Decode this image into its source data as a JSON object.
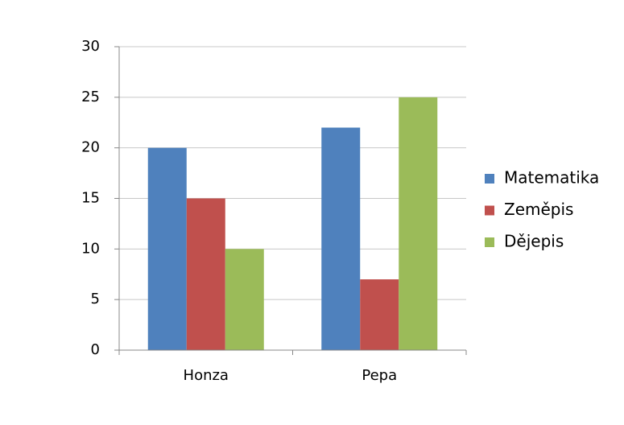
{
  "chart_data": {
    "type": "bar",
    "categories": [
      "Honza",
      "Pepa"
    ],
    "series": [
      {
        "name": "Matematika",
        "color": "#4f81bd",
        "values": [
          20,
          22
        ]
      },
      {
        "name": "Zeměpis",
        "color": "#c0504d",
        "values": [
          15,
          7
        ]
      },
      {
        "name": "Dějepis",
        "color": "#9bbb59",
        "values": [
          10,
          25
        ]
      }
    ],
    "ylim": [
      0,
      30
    ],
    "yticks": [
      0,
      5,
      10,
      15,
      20,
      25,
      30
    ],
    "grid": true,
    "legend": "right"
  }
}
